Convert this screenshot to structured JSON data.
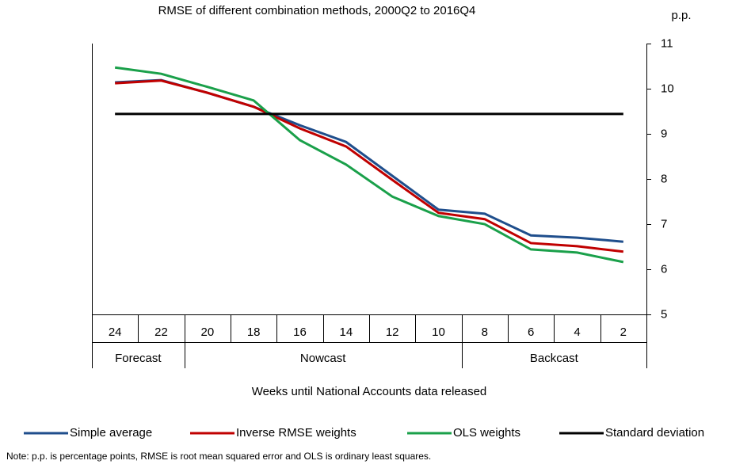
{
  "chart_data": {
    "type": "line",
    "title": "RMSE of different combination methods, 2000Q2 to 2016Q4",
    "y_axis_label": "p.p.",
    "x_axis_label": "Weeks until National Accounts data released",
    "categories": [
      "24",
      "22",
      "20",
      "18",
      "16",
      "14",
      "12",
      "10",
      "8",
      "6",
      "4",
      "2"
    ],
    "groups": [
      "Forecast",
      "Nowcast",
      "Backcast"
    ],
    "series": [
      {
        "name": "Simple average",
        "color": "#1f4e8c",
        "values": [
          10.14,
          10.19,
          9.91,
          9.6,
          9.19,
          8.82,
          8.07,
          7.32,
          7.23,
          6.75,
          6.7,
          6.61
        ]
      },
      {
        "name": "Inverse RMSE weights",
        "color": "#c00000",
        "values": [
          10.12,
          10.18,
          9.91,
          9.6,
          9.12,
          8.72,
          7.98,
          7.25,
          7.11,
          6.58,
          6.51,
          6.39
        ]
      },
      {
        "name": "OLS weights",
        "color": "#1aa04a",
        "values": [
          10.47,
          10.33,
          10.04,
          9.74,
          8.86,
          8.32,
          7.61,
          7.18,
          7.0,
          6.44,
          6.37,
          6.16
        ]
      },
      {
        "name": "Standard deviation",
        "color": "#000000",
        "values": [
          9.44,
          9.44,
          9.44,
          9.44,
          9.44,
          9.44,
          9.44,
          9.44,
          9.44,
          9.44,
          9.44,
          9.44
        ]
      }
    ],
    "ylim": [
      5,
      11
    ],
    "yticks": [
      5,
      6,
      7,
      8,
      9,
      10,
      11
    ],
    "y_axis_side": "right",
    "note": "Note: p.p. is percentage points, RMSE is root mean squared error and OLS is ordinary least squares."
  }
}
